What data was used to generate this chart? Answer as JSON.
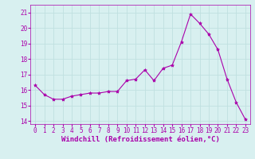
{
  "x": [
    0,
    1,
    2,
    3,
    4,
    5,
    6,
    7,
    8,
    9,
    10,
    11,
    12,
    13,
    14,
    15,
    16,
    17,
    18,
    19,
    20,
    21,
    22,
    23
  ],
  "y": [
    16.3,
    15.7,
    15.4,
    15.4,
    15.6,
    15.7,
    15.8,
    15.8,
    15.9,
    15.9,
    16.6,
    16.7,
    17.3,
    16.6,
    17.4,
    17.6,
    19.1,
    20.9,
    20.3,
    19.6,
    18.6,
    16.7,
    15.2,
    14.1
  ],
  "line_color": "#aa00aa",
  "marker": "*",
  "marker_size": 3,
  "xlabel": "Windchill (Refroidissement éolien,°C)",
  "xlabel_color": "#aa00aa",
  "bg_color": "#d8f0f0",
  "grid_color": "#b0d8d8",
  "ylim": [
    13.8,
    21.5
  ],
  "yticks": [
    14,
    15,
    16,
    17,
    18,
    19,
    20,
    21
  ],
  "xticks": [
    0,
    1,
    2,
    3,
    4,
    5,
    6,
    7,
    8,
    9,
    10,
    11,
    12,
    13,
    14,
    15,
    16,
    17,
    18,
    19,
    20,
    21,
    22,
    23
  ],
  "tick_color": "#aa00aa",
  "tick_fontsize": 5.5,
  "xlabel_fontsize": 6.5
}
